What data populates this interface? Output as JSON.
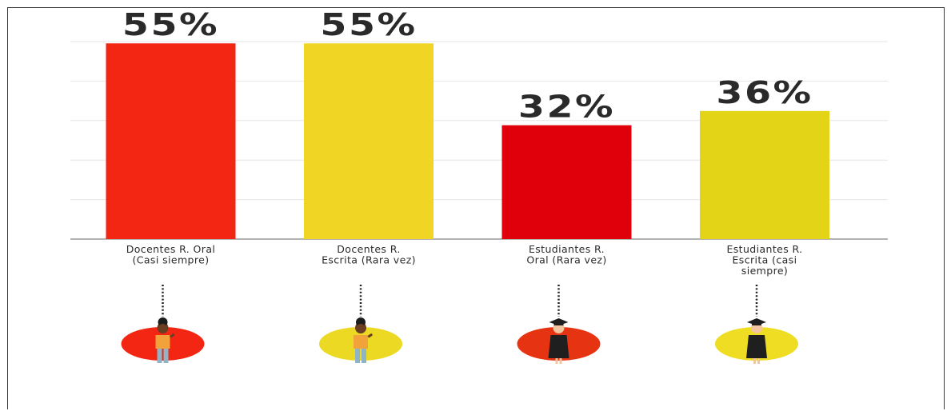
{
  "chart_data": {
    "type": "bar",
    "title": "",
    "xlabel": "",
    "ylabel": "",
    "ylim": [
      0,
      60
    ],
    "grid": true,
    "categories": [
      [
        "Docentes R. Oral",
        "(Casi siempre)"
      ],
      [
        "Docentes R.",
        "Escrita (Rara vez)"
      ],
      [
        "Estudiantes R.",
        "Oral (Rara vez)"
      ],
      [
        "Estudiantes R.",
        "Escrita (casi",
        "siempre)"
      ]
    ],
    "values": [
      55,
      55,
      32,
      36
    ],
    "value_labels": [
      "55%",
      "55%",
      "32%",
      "36%"
    ],
    "bar_colors": [
      "#f22613",
      "#f0d524",
      "#e0000c",
      "#e3d418"
    ],
    "icons": [
      {
        "name": "teacher-woman-icon",
        "circle_color": "#f22613"
      },
      {
        "name": "teacher-woman-icon",
        "circle_color": "#ecd923"
      },
      {
        "name": "graduate-student-icon",
        "circle_color": "#e63312"
      },
      {
        "name": "graduate-student-icon",
        "circle_color": "#eedd22"
      }
    ]
  }
}
